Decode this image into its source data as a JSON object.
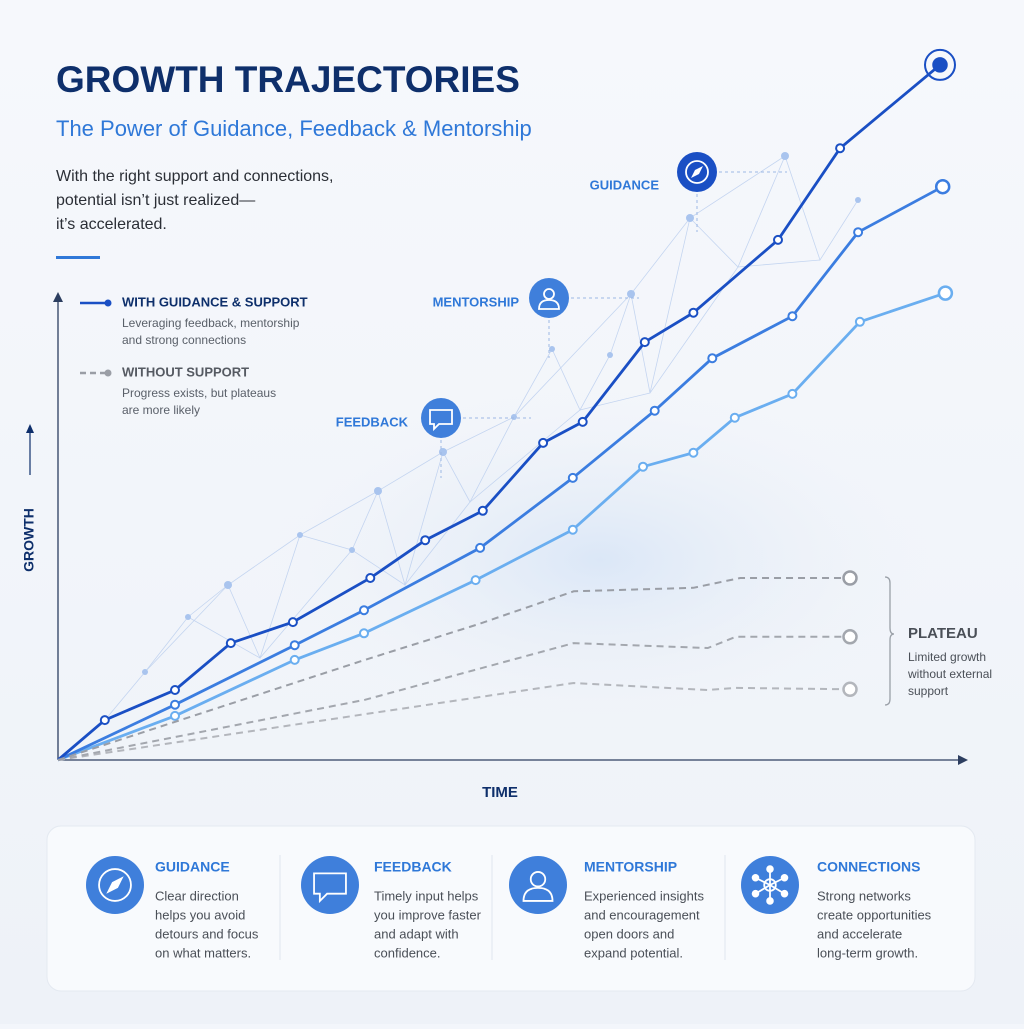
{
  "header": {
    "title": "GROWTH TRAJECTORIES",
    "subtitle": "The Power of Guidance, Feedback & Mentorship",
    "intro": [
      "With the right support and connections,",
      "potential isn’t just realized—",
      "it’s accelerated."
    ]
  },
  "chart_data": {
    "type": "line",
    "x_label": "TIME",
    "y_label": "GROWTH",
    "xlim": [
      0,
      100
    ],
    "ylim": [
      0,
      100
    ],
    "series": [
      {
        "name": "WITH GUIDANCE & SUPPORT",
        "description": [
          "Leveraging feedback, mentorship",
          "and strong connections"
        ],
        "dashed": false,
        "lines": [
          {
            "color": "#1a4fc4",
            "x": [
              0,
              5.2,
              13,
              19.2,
              26.1,
              34.7,
              40.8,
              47.2,
              53.9,
              58.3,
              65.2,
              70.6,
              80,
              86.9,
              98
            ],
            "values": [
              0,
              5.7,
              10,
              16.7,
              19.7,
              26,
              31.4,
              35.6,
              45.3,
              48.3,
              59.7,
              63.9,
              74.3,
              87.4,
              99.3
            ]
          },
          {
            "color": "#3b7de0",
            "x": [
              0,
              13,
              26.3,
              34,
              46.9,
              57.2,
              66.3,
              72.7,
              81.6,
              88.9,
              98.3
            ],
            "values": [
              0,
              7.9,
              16.4,
              21.4,
              30.3,
              40.3,
              49.9,
              57.4,
              63.4,
              75.4,
              81.9
            ]
          },
          {
            "color": "#6aaef0",
            "x": [
              0,
              13,
              26.3,
              34,
              46.4,
              57.2,
              65,
              70.6,
              75.2,
              81.6,
              89.1,
              98.6
            ],
            "values": [
              0,
              6.3,
              14.3,
              18.1,
              25.7,
              32.9,
              41.9,
              43.9,
              48.9,
              52.3,
              62.6,
              66.7
            ]
          }
        ]
      },
      {
        "name": "WITHOUT SUPPORT",
        "description": [
          "Progress exists, but plateaus",
          "are more likely"
        ],
        "dashed": true,
        "lines": [
          {
            "color": "#9a9ea6",
            "x": [
              0,
              34.1,
              46.7,
              57.3,
              70.6,
              75.8,
              88
            ],
            "values": [
              0,
              14.3,
              19.4,
              24.1,
              24.6,
              26,
              26
            ]
          },
          {
            "color": "#a3a7ae",
            "x": [
              0,
              34.1,
              57.3,
              72.2,
              75.3,
              88
            ],
            "values": [
              0,
              8.6,
              16.7,
              16,
              17.6,
              17.6
            ]
          },
          {
            "color": "#b3b6bc",
            "x": [
              0,
              57.3,
              72.2,
              75.3,
              88
            ],
            "values": [
              0,
              11,
              10,
              10.3,
              10.1
            ]
          }
        ]
      }
    ],
    "annotations": [
      "GUIDANCE",
      "MENTORSHIP",
      "FEEDBACK"
    ],
    "plateau": {
      "label": "PLATEAU",
      "text": [
        "Limited growth",
        "without external",
        "support"
      ]
    }
  },
  "cards": [
    {
      "title": "GUIDANCE",
      "text": [
        "Clear direction",
        "helps you avoid",
        "detours and focus",
        "on what matters."
      ]
    },
    {
      "title": "FEEDBACK",
      "text": [
        "Timely input helps",
        "you improve faster",
        "and adapt with",
        "confidence."
      ]
    },
    {
      "title": "MENTORSHIP",
      "text": [
        "Experienced insights",
        "and encouragement",
        "open doors and",
        "expand potential."
      ]
    },
    {
      "title": "CONNECTIONS",
      "text": [
        "Strong networks",
        "create opportunities",
        "and accelerate",
        "long-term growth."
      ]
    }
  ]
}
